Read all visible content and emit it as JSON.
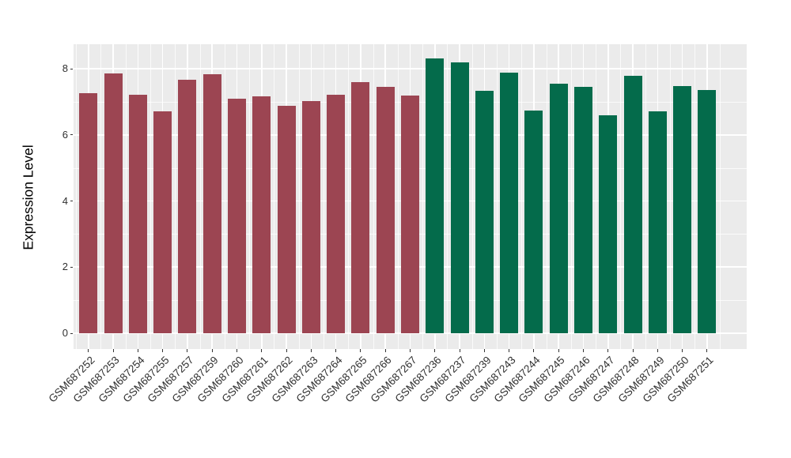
{
  "figure": {
    "background": "#FFFFFF"
  },
  "chart_data": {
    "type": "bar",
    "title": "",
    "xlabel": "",
    "ylabel": "Expression Level",
    "ylim": [
      0,
      8.74
    ],
    "yticks": [
      0,
      2,
      4,
      6,
      8
    ],
    "grid": true,
    "legend": "none",
    "panel_bg": "#EBEBEB",
    "grid_color": "#FFFFFF",
    "tick_color": "#333333",
    "tick_label_color": "#303030",
    "x_tick_label_angle_deg": 45,
    "series": [
      {
        "name": "red-bars",
        "color": "#9C4552",
        "categories": [
          "GSM687252",
          "GSM687253",
          "GSM687254",
          "GSM687255",
          "GSM687257",
          "GSM687259",
          "GSM687260",
          "GSM687261",
          "GSM687262",
          "GSM687263",
          "GSM687264",
          "GSM687265",
          "GSM687266",
          "GSM687267"
        ],
        "values": [
          7.27,
          7.86,
          7.21,
          6.7,
          7.67,
          7.83,
          7.09,
          7.17,
          6.89,
          7.02,
          7.22,
          7.59,
          7.46,
          7.2
        ]
      },
      {
        "name": "green-bars",
        "color": "#046B4B",
        "categories": [
          "GSM687236",
          "GSM687237",
          "GSM687239",
          "GSM687243",
          "GSM687244",
          "GSM687245",
          "GSM687246",
          "GSM687247",
          "GSM687248",
          "GSM687249",
          "GSM687250",
          "GSM687251"
        ],
        "values": [
          8.31,
          8.19,
          7.33,
          7.88,
          6.74,
          7.55,
          7.44,
          6.6,
          7.79,
          6.7,
          7.48,
          7.36
        ]
      }
    ]
  }
}
